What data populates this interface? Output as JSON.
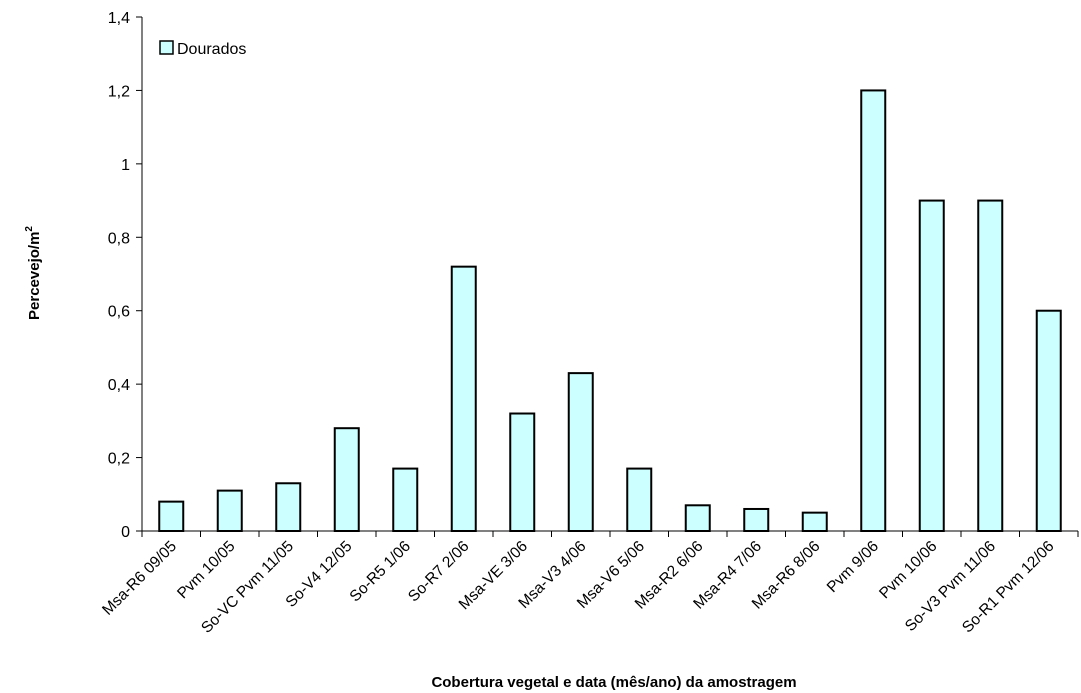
{
  "chart_data": {
    "type": "bar",
    "categories": [
      "Msa-R6 09/05",
      "Pvm 10/05",
      "So-VC Pvm 11/05",
      "So-V4 12/05",
      "So-R5 1/06",
      "So-R7 2/06",
      "Msa-VE 3/06",
      "Msa-V3 4/06",
      "Msa-V6 5/06",
      "Msa-R2 6/06",
      "Msa-R4 7/06",
      "Msa-R6 8/06",
      "Pvm 9/06",
      "Pvm 10/06",
      "So-V3 Pvm  11/06",
      "So-R1 Pvm  12/06"
    ],
    "series": [
      {
        "name": "Dourados",
        "values": [
          0.08,
          0.11,
          0.13,
          0.28,
          0.17,
          0.72,
          0.32,
          0.43,
          0.17,
          0.07,
          0.06,
          0.05,
          1.2,
          0.9,
          0.9,
          0.6
        ]
      }
    ],
    "ylabel": "Percevejo/m",
    "ylabel_superscript": "2",
    "xlabel": "Cobertura vegetal e data (mês/ano) da amostragem",
    "ylim": [
      0,
      1.4
    ],
    "yticks": [
      0,
      0.2,
      0.4,
      0.6,
      0.8,
      1,
      1.2,
      1.4
    ],
    "ytick_labels": [
      "0",
      "0,2",
      "0,4",
      "0,6",
      "0,8",
      "1",
      "1,2",
      "1,4"
    ],
    "grid": false,
    "legend_position": "top-left",
    "colors": {
      "bar_fill": "#ccffff",
      "bar_stroke": "#000000",
      "axis": "#000000"
    }
  }
}
